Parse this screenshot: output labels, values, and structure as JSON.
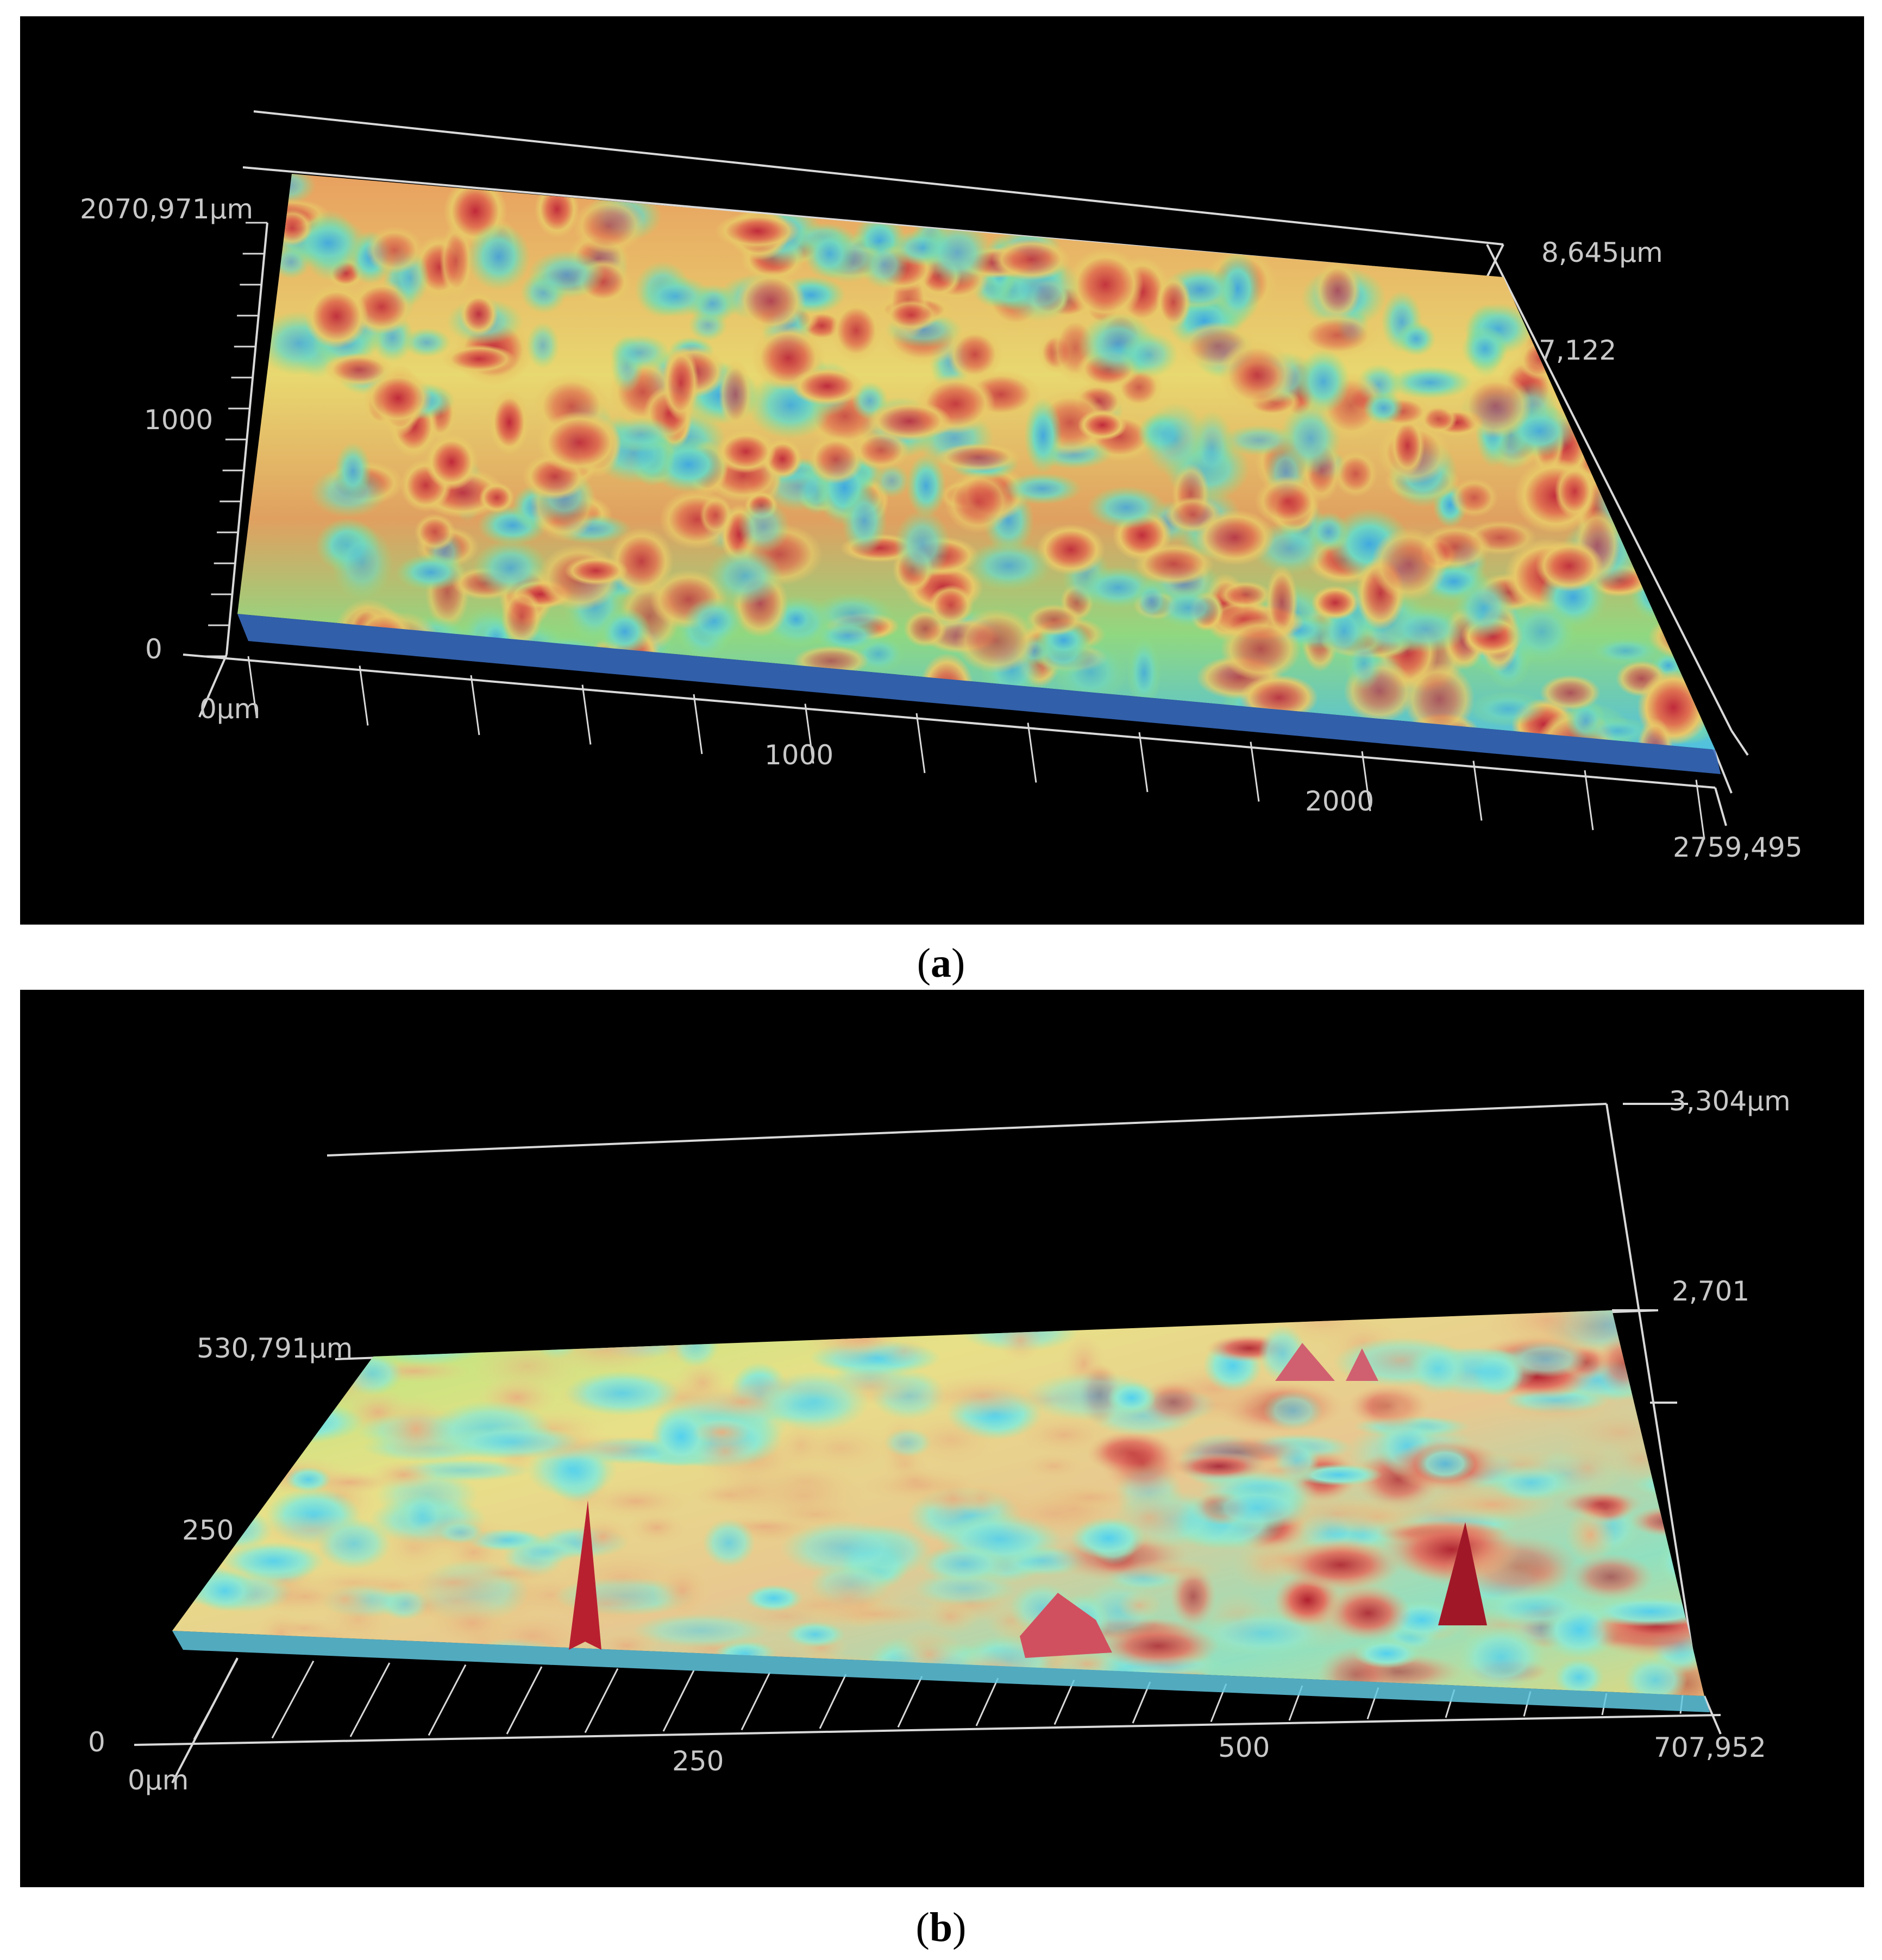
{
  "panels": [
    {
      "caption_letter": "a",
      "axis_labels": {
        "y_max": "2070,971µm",
        "y_mid": "1000",
        "y_zero": "0",
        "x_origin": "0µm",
        "x_1000": "1000",
        "x_2000": "2000",
        "x_max": "2759,495",
        "z_max": "8,645µm",
        "z_mid": "7,122"
      }
    },
    {
      "caption_letter": "b",
      "axis_labels": {
        "y_max": "530,791µm",
        "y_mid": "250",
        "y_zero": "0",
        "x_origin": "0µm",
        "x_250": "250",
        "x_500": "500",
        "x_max": "707,952",
        "z_max": "3,304µm",
        "z_mid": "2,701"
      }
    }
  ],
  "colors": {
    "background": "#000000",
    "axis_lines": "#d9d9d9",
    "surface_high": "#c0283a",
    "surface_mid_warm": "#f0a060",
    "surface_mid": "#e8e070",
    "surface_low_green": "#80e080",
    "surface_low": "#60d8e8",
    "surface_lowest": "#3050c0"
  }
}
